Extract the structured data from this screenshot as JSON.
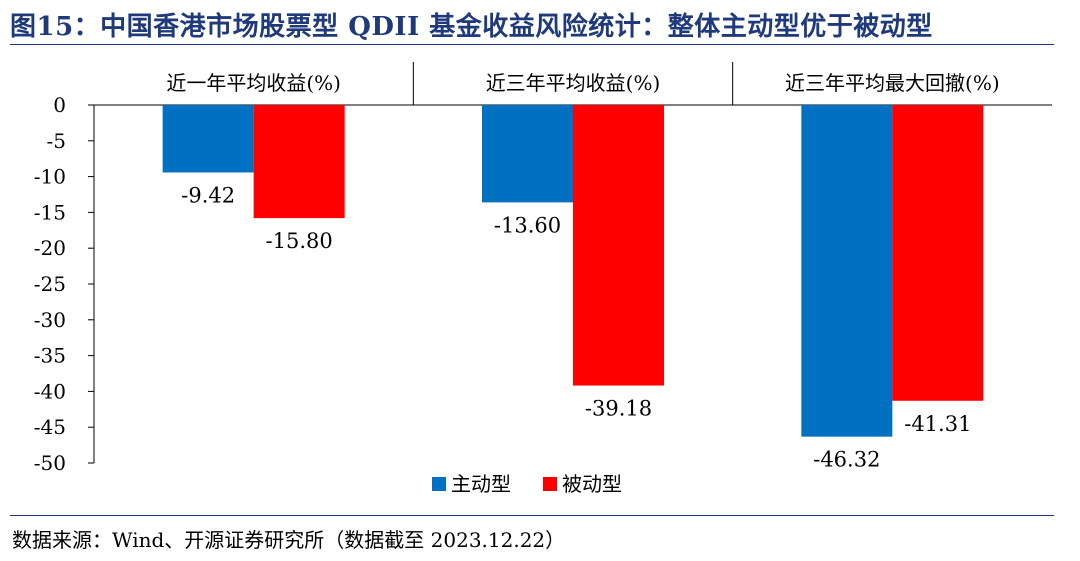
{
  "title": "图15：中国香港市场股票型 QDII 基金收益风险统计：整体主动型优于被动型",
  "source": "数据来源：Wind、开源证券研究所（数据截至 2023.12.22）",
  "chart_data": {
    "type": "bar",
    "categories": [
      "近一年平均收益(%)",
      "近三年平均收益(%)",
      "近三年平均最大回撤(%)"
    ],
    "series": [
      {
        "name": "主动型",
        "color": "#0070c0",
        "values": [
          -9.42,
          -13.6,
          -46.32
        ]
      },
      {
        "name": "被动型",
        "color": "#ff0000",
        "values": [
          -15.8,
          -39.18,
          -41.31
        ]
      }
    ],
    "ylim": [
      -50,
      0
    ],
    "yticks": [
      0,
      -5,
      -10,
      -15,
      -20,
      -25,
      -30,
      -35,
      -40,
      -45,
      -50
    ],
    "value_labels": [
      [
        "-9.42",
        "-13.60",
        "-46.32"
      ],
      [
        "-15.80",
        "-39.18",
        "-41.31"
      ]
    ],
    "category_labels_position": "top",
    "legend_position": "bottom-center",
    "grid": false
  }
}
